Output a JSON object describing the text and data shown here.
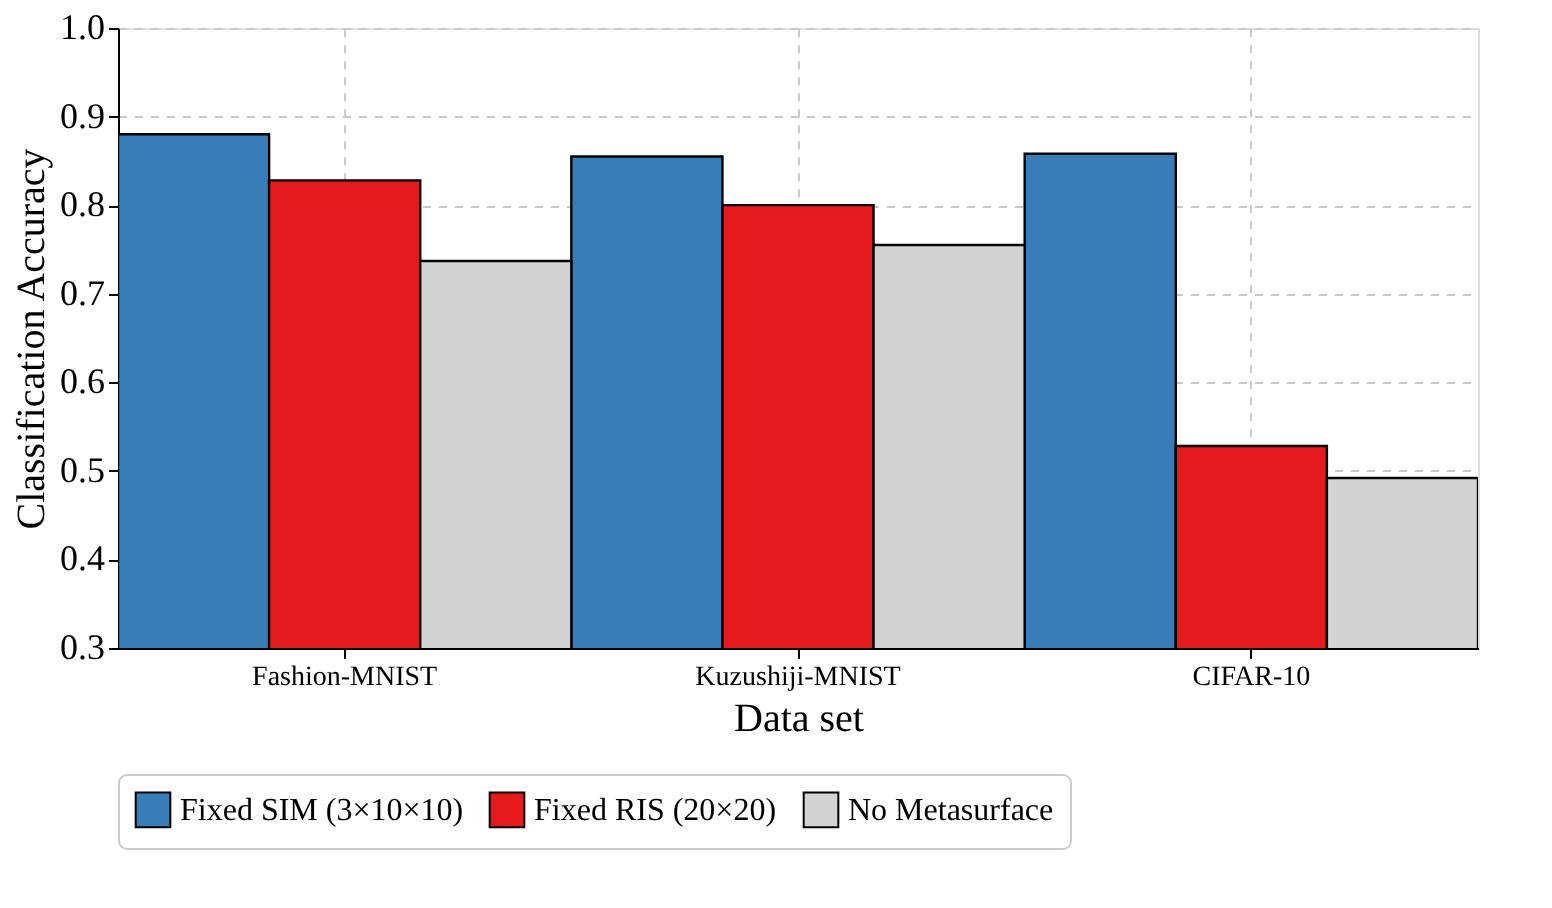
{
  "chart_data": {
    "type": "bar",
    "xlabel": "Data set",
    "ylabel": "Classification Accuracy",
    "categories": [
      "Fashion-MNIST",
      "Kuzushiji-MNIST",
      "CIFAR-10"
    ],
    "series": [
      {
        "name": "Fixed SIM (3×10×10)",
        "color": "#377eb8",
        "values": [
          0.88,
          0.855,
          0.858
        ]
      },
      {
        "name": "Fixed RIS (20×20)",
        "color": "#e41a1c",
        "values": [
          0.828,
          0.8,
          0.528
        ]
      },
      {
        "name": "No Metasurface",
        "color": "#d3d3d3",
        "values": [
          0.737,
          0.755,
          0.492
        ]
      }
    ],
    "ylim": [
      0.3,
      1.0
    ],
    "yticks": [
      0.3,
      0.4,
      0.5,
      0.6,
      0.7,
      0.8,
      0.9,
      {
        "value": 1,
        "label": "1.0"
      }
    ],
    "grid": true,
    "legend": "bottom"
  }
}
